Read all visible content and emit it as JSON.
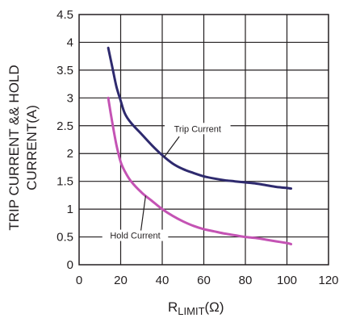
{
  "chart_data": {
    "type": "line",
    "xlabel_main": "R",
    "xlabel_sub": "LIMIT",
    "xlabel_unit": "(Ω)",
    "ylabel_line1": "TRIP CURRENT && HOLD",
    "ylabel_line2": "CURRENT(A)",
    "xlim": [
      0,
      120
    ],
    "ylim": [
      0,
      4.5
    ],
    "grid": true,
    "x_ticks": [
      0,
      20,
      40,
      60,
      80,
      100,
      120
    ],
    "x_tick_labels": [
      "0",
      "20",
      "40",
      "60",
      "80",
      "100",
      "120"
    ],
    "y_ticks": [
      0,
      0.5,
      1,
      1.5,
      2,
      2.5,
      3,
      3.5,
      4,
      4.5
    ],
    "y_tick_labels": [
      "0",
      "0.5",
      "1",
      "1.5",
      "2",
      "2.5",
      "3",
      "3.5",
      "4",
      "4.5"
    ],
    "series": [
      {
        "name": "Trip Current",
        "color": "#2e2a6e",
        "x": [
          14,
          16,
          18,
          20,
          22,
          25,
          30,
          35,
          40,
          45,
          50,
          55,
          60,
          65,
          70,
          75,
          80,
          85,
          90,
          95,
          100,
          102
        ],
        "y": [
          3.9,
          3.55,
          3.2,
          2.95,
          2.72,
          2.55,
          2.35,
          2.15,
          1.97,
          1.82,
          1.72,
          1.65,
          1.59,
          1.55,
          1.52,
          1.5,
          1.48,
          1.46,
          1.43,
          1.4,
          1.38,
          1.37
        ]
      },
      {
        "name": "Hold Current",
        "color": "#c453b4",
        "x": [
          14,
          16,
          18,
          20,
          22,
          25,
          30,
          35,
          40,
          45,
          50,
          55,
          60,
          65,
          70,
          75,
          80,
          85,
          90,
          95,
          100,
          102
        ],
        "y": [
          3.0,
          2.55,
          2.15,
          1.85,
          1.68,
          1.5,
          1.3,
          1.15,
          1.0,
          0.88,
          0.78,
          0.7,
          0.64,
          0.6,
          0.56,
          0.53,
          0.5,
          0.48,
          0.45,
          0.42,
          0.39,
          0.37
        ]
      }
    ],
    "annotations": [
      {
        "text": "Trip Current",
        "series": 0,
        "at_x": 41,
        "label_x": 57,
        "label_y": 2.42
      },
      {
        "text": "Hold Current",
        "series": 1,
        "at_x": 32,
        "label_x": 27,
        "label_y": 0.5
      }
    ]
  }
}
